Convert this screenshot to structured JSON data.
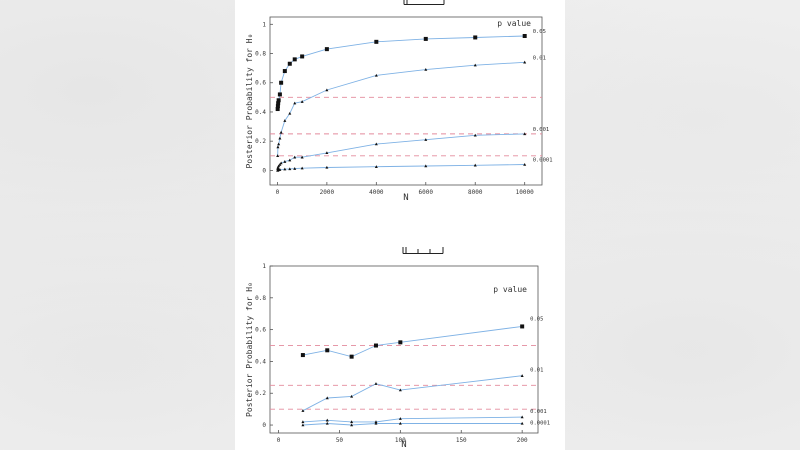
{
  "chart_data": [
    {
      "type": "line",
      "xlabel": "N",
      "ylabel": "Posterior Probability for H₀",
      "xlim": [
        -300,
        10700
      ],
      "ylim": [
        -0.1,
        1.05
      ],
      "xticks": [
        0,
        2000,
        4000,
        6000,
        8000,
        10000
      ],
      "yticks": [
        0,
        0.2,
        0.4,
        0.6,
        0.8,
        1
      ],
      "ytick_labels": [
        "0",
        "0.2",
        "0.4",
        "0.6",
        "0.8",
        "1"
      ],
      "legend_title": "p value",
      "reference_lines": [
        0.5,
        0.25,
        0.1
      ],
      "series": [
        {
          "name": "0.05",
          "marker": "square",
          "x": [
            10,
            20,
            30,
            50,
            100,
            150,
            300,
            500,
            700,
            1000,
            2000,
            4000,
            6000,
            8000,
            10000
          ],
          "y": [
            0.42,
            0.44,
            0.46,
            0.48,
            0.52,
            0.6,
            0.68,
            0.73,
            0.76,
            0.78,
            0.83,
            0.88,
            0.9,
            0.91,
            0.92
          ]
        },
        {
          "name": "0.01",
          "marker": "triangle",
          "x": [
            10,
            20,
            50,
            100,
            150,
            300,
            500,
            700,
            1000,
            2000,
            4000,
            6000,
            8000,
            10000
          ],
          "y": [
            0.1,
            0.16,
            0.18,
            0.22,
            0.26,
            0.34,
            0.39,
            0.46,
            0.47,
            0.55,
            0.65,
            0.69,
            0.72,
            0.74
          ]
        },
        {
          "name": "0.001",
          "marker": "triangle",
          "x": [
            10,
            20,
            50,
            100,
            150,
            300,
            500,
            700,
            1000,
            2000,
            4000,
            6000,
            8000,
            10000
          ],
          "y": [
            0.01,
            0.02,
            0.03,
            0.04,
            0.05,
            0.06,
            0.07,
            0.09,
            0.09,
            0.12,
            0.18,
            0.21,
            0.24,
            0.25
          ]
        },
        {
          "name": "0.0001",
          "marker": "triangle",
          "x": [
            10,
            20,
            50,
            100,
            300,
            500,
            700,
            1000,
            2000,
            4000,
            6000,
            8000,
            10000
          ],
          "y": [
            0.0,
            0.0,
            0.005,
            0.005,
            0.008,
            0.01,
            0.012,
            0.015,
            0.02,
            0.025,
            0.03,
            0.035,
            0.04
          ]
        }
      ]
    },
    {
      "type": "line",
      "xlabel": "N",
      "ylabel": "Posterior Probability for H₀",
      "xlim": [
        -7,
        213
      ],
      "ylim": [
        -0.05,
        1.0
      ],
      "xticks": [
        0,
        50,
        100,
        150,
        200
      ],
      "yticks": [
        0,
        0.2,
        0.4,
        0.6,
        0.8,
        1
      ],
      "ytick_labels": [
        "0",
        "0.2",
        "0.4",
        "0.6",
        "0.8",
        "1"
      ],
      "legend_title": "p value",
      "reference_lines": [
        0.5,
        0.25,
        0.1
      ],
      "series": [
        {
          "name": "0.05",
          "marker": "square",
          "x": [
            20,
            40,
            60,
            80,
            100,
            200
          ],
          "y": [
            0.44,
            0.47,
            0.43,
            0.5,
            0.52,
            0.62
          ]
        },
        {
          "name": "0.01",
          "marker": "triangle",
          "x": [
            20,
            40,
            60,
            80,
            100,
            200
          ],
          "y": [
            0.09,
            0.17,
            0.18,
            0.26,
            0.22,
            0.31
          ]
        },
        {
          "name": "0.001",
          "marker": "triangle",
          "x": [
            20,
            40,
            60,
            80,
            100,
            200
          ],
          "y": [
            0.02,
            0.03,
            0.02,
            0.02,
            0.04,
            0.05
          ]
        },
        {
          "name": "0.0001",
          "marker": "triangle",
          "x": [
            20,
            40,
            60,
            80,
            100,
            200
          ],
          "y": [
            0.0,
            0.01,
            0.0,
            0.01,
            0.01,
            0.01
          ]
        }
      ]
    }
  ]
}
